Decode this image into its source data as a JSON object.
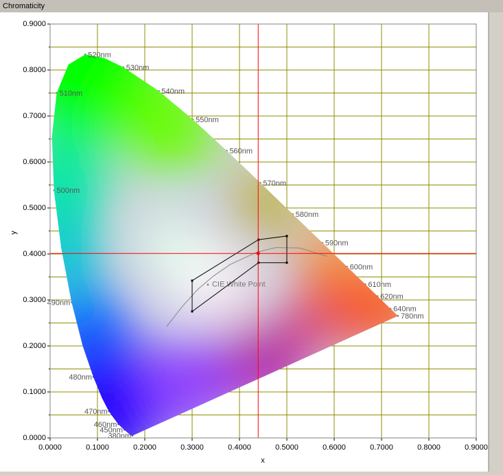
{
  "chart_data": {
    "type": "chromaticity",
    "title": "Chromaticity",
    "x_label": "x",
    "y_label": "y",
    "xlim": [
      0,
      0.9
    ],
    "ylim": [
      0,
      0.9
    ],
    "xticks": [
      {
        "value": 0,
        "label": "0.0000"
      },
      {
        "value": 0.1,
        "label": "0.1000"
      },
      {
        "value": 0.2,
        "label": "0.2000"
      },
      {
        "value": 0.3,
        "label": "0.3000"
      },
      {
        "value": 0.4,
        "label": "0.4000"
      },
      {
        "value": 0.5,
        "label": "0.5000"
      },
      {
        "value": 0.6,
        "label": "0.6000"
      },
      {
        "value": 0.7,
        "label": "0.7000"
      },
      {
        "value": 0.8,
        "label": "0.8000"
      },
      {
        "value": 0.9,
        "label": "0.9000"
      }
    ],
    "yticks": [
      {
        "value": 0,
        "label": "0.0000"
      },
      {
        "value": 0.1,
        "label": "0.1000"
      },
      {
        "value": 0.2,
        "label": "0.2000"
      },
      {
        "value": 0.3,
        "label": "0.3000"
      },
      {
        "value": 0.4,
        "label": "0.4000"
      },
      {
        "value": 0.5,
        "label": "0.5000"
      },
      {
        "value": 0.6,
        "label": "0.6000"
      },
      {
        "value": 0.7,
        "label": "0.7000"
      },
      {
        "value": 0.8,
        "label": "0.8000"
      },
      {
        "value": 0.9,
        "label": "0.9000"
      }
    ],
    "y_minor_ticks": [
      0.05,
      0.15,
      0.25,
      0.35,
      0.45,
      0.55,
      0.65,
      0.75,
      0.85
    ],
    "grid": true,
    "grid_color": "#8c8c00",
    "locus": {
      "x": [
        0.1741,
        0.1733,
        0.1714,
        0.1644,
        0.1566,
        0.144,
        0.1241,
        0.1096,
        0.0913,
        0.0687,
        0.0454,
        0.0235,
        0.0082,
        0.0039,
        0.0139,
        0.0389,
        0.0743,
        0.1142,
        0.1547,
        0.2296,
        0.3016,
        0.3731,
        0.4441,
        0.5125,
        0.5752,
        0.627,
        0.6658,
        0.6915,
        0.719,
        0.7347
      ],
      "y": [
        0.005,
        0.0048,
        0.0051,
        0.0109,
        0.0177,
        0.0297,
        0.0578,
        0.0868,
        0.1327,
        0.2007,
        0.295,
        0.4127,
        0.5384,
        0.6548,
        0.7502,
        0.812,
        0.8338,
        0.8262,
        0.8059,
        0.7543,
        0.6923,
        0.6245,
        0.5547,
        0.4866,
        0.4242,
        0.3725,
        0.334,
        0.3083,
        0.2809,
        0.2653
      ]
    },
    "wavelength_labels": [
      {
        "label": "520nm",
        "x": 0.0743,
        "y": 0.8338
      },
      {
        "label": "530nm",
        "x": 0.1547,
        "y": 0.8059
      },
      {
        "label": "540nm",
        "x": 0.2296,
        "y": 0.7543
      },
      {
        "label": "550nm",
        "x": 0.3016,
        "y": 0.6923
      },
      {
        "label": "560nm",
        "x": 0.3731,
        "y": 0.6245
      },
      {
        "label": "570nm",
        "x": 0.4441,
        "y": 0.5547
      },
      {
        "label": "580nm",
        "x": 0.5125,
        "y": 0.4866
      },
      {
        "label": "590nm",
        "x": 0.5752,
        "y": 0.4242
      },
      {
        "label": "600nm",
        "x": 0.627,
        "y": 0.3725
      },
      {
        "label": "610nm",
        "x": 0.6658,
        "y": 0.334
      },
      {
        "label": "620nm",
        "x": 0.6915,
        "y": 0.3083
      },
      {
        "label": "640nm",
        "x": 0.719,
        "y": 0.2809
      },
      {
        "label": "780nm",
        "x": 0.7347,
        "y": 0.2653
      },
      {
        "label": "510nm",
        "x": 0.0139,
        "y": 0.7502
      },
      {
        "label": "500nm",
        "x": 0.0082,
        "y": 0.5384
      },
      {
        "label": "490nm",
        "x": 0.0454,
        "y": 0.295
      },
      {
        "label": "480nm",
        "x": 0.0913,
        "y": 0.1327
      },
      {
        "label": "470nm",
        "x": 0.1241,
        "y": 0.0578
      },
      {
        "label": "460nm",
        "x": 0.144,
        "y": 0.0297
      },
      {
        "label": "450nm",
        "x": 0.1566,
        "y": 0.0177
      },
      {
        "label": "380nm",
        "x": 0.1741,
        "y": 0.005
      }
    ],
    "planckian": {
      "x": [
        0.246,
        0.265,
        0.281,
        0.313,
        0.345,
        0.38,
        0.437,
        0.477,
        0.527,
        0.585
      ],
      "y": [
        0.242,
        0.267,
        0.288,
        0.324,
        0.352,
        0.377,
        0.404,
        0.414,
        0.413,
        0.395
      ]
    },
    "white_point": {
      "label": "CIE White Point",
      "x": 0.3333,
      "y": 0.3333
    },
    "bin": {
      "x": [
        0.3,
        0.44,
        0.5,
        0.5,
        0.44,
        0.3
      ],
      "y": [
        0.342,
        0.431,
        0.439,
        0.381,
        0.381,
        0.275
      ]
    },
    "measured": {
      "x": 0.4395,
      "y": 0.4012,
      "color": "#ff0000"
    }
  }
}
